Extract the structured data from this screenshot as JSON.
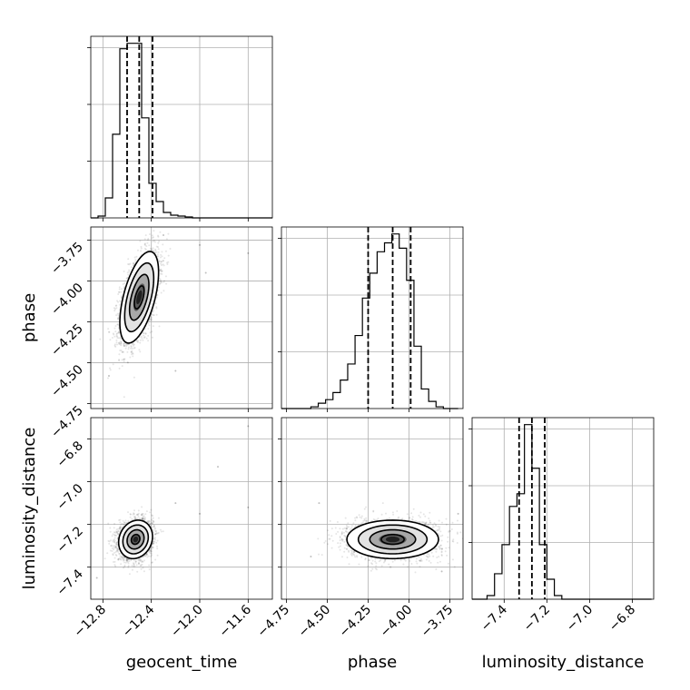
{
  "chart_data": {
    "type": "corner",
    "parameters": [
      "geocent_time",
      "phase",
      "luminosity_distance"
    ],
    "axis_labels": {
      "x": [
        "geocent_time",
        "phase",
        "luminosity_distance"
      ],
      "y": [
        "",
        "phase",
        "luminosity_distance"
      ]
    },
    "ranges": {
      "geocent_time": [
        -12.9,
        -11.4
      ],
      "phase": [
        -4.78,
        -3.67
      ],
      "luminosity_distance": [
        -7.55,
        -6.7
      ]
    },
    "ticks": {
      "geocent_time": [
        -12.8,
        -12.4,
        -12.0,
        -11.6
      ],
      "phase": [
        -4.75,
        -4.5,
        -4.25,
        -4.0,
        -3.75
      ],
      "luminosity_distance": [
        -7.4,
        -7.2,
        -7.0,
        -6.8
      ]
    },
    "tick_labels": {
      "geocent_time": [
        "−12.8",
        "−12.4",
        "−12.0",
        "−11.6"
      ],
      "phase": [
        "−4.75",
        "−4.50",
        "−4.25",
        "−4.00",
        "−3.75"
      ],
      "luminosity_distance": [
        "−7.4",
        "−7.2",
        "−7.0",
        "−6.8"
      ]
    },
    "grid": true,
    "histograms": {
      "geocent_time": {
        "bin_edges": [
          -12.9,
          -12.84,
          -12.78,
          -12.72,
          -12.66,
          -12.6,
          -12.54,
          -12.48,
          -12.42,
          -12.36,
          -12.3,
          -12.24,
          -12.18,
          -12.12,
          -12.06,
          -12.0,
          -11.94,
          -11.88,
          -11.82,
          -11.76,
          -11.7,
          -11.64,
          -11.58,
          -11.52,
          -11.46,
          -11.4
        ],
        "counts": [
          0,
          0.01,
          0.11,
          0.46,
          0.93,
          0.96,
          0.96,
          0.55,
          0.19,
          0.09,
          0.03,
          0.015,
          0.01,
          0.005,
          0,
          0,
          0,
          0,
          0,
          0,
          0,
          0,
          0,
          0,
          0
        ],
        "quantiles": [
          -12.6,
          -12.5,
          -12.39
        ]
      },
      "phase": {
        "bin_edges": [
          -4.78,
          -4.735,
          -4.69,
          -4.645,
          -4.6,
          -4.555,
          -4.51,
          -4.465,
          -4.42,
          -4.375,
          -4.33,
          -4.285,
          -4.24,
          -4.195,
          -4.15,
          -4.105,
          -4.06,
          -4.015,
          -3.97,
          -3.925,
          -3.88,
          -3.835,
          -3.79,
          -3.745,
          -3.7
        ],
        "counts": [
          0,
          0,
          0,
          0,
          0.01,
          0.03,
          0.05,
          0.09,
          0.16,
          0.25,
          0.41,
          0.62,
          0.76,
          0.88,
          0.93,
          0.98,
          0.9,
          0.72,
          0.35,
          0.11,
          0.04,
          0.01,
          0,
          0
        ],
        "quantiles": [
          -4.25,
          -4.1,
          -3.99
        ]
      },
      "luminosity_distance": {
        "bin_edges": [
          -7.55,
          -7.515,
          -7.48,
          -7.445,
          -7.41,
          -7.375,
          -7.34,
          -7.305,
          -7.27,
          -7.235,
          -7.2,
          -7.165,
          -7.13,
          -7.095,
          -7.06,
          -7.025,
          -6.99,
          -6.955,
          -6.92,
          -6.885,
          -6.85,
          -6.815,
          -6.78,
          -6.745,
          -6.71
        ],
        "counts": [
          0,
          0,
          0.02,
          0.14,
          0.3,
          0.51,
          0.58,
          0.96,
          0.72,
          0.3,
          0.11,
          0.02,
          0,
          0,
          0,
          0,
          0,
          0,
          0,
          0,
          0,
          0,
          0,
          0
        ],
        "quantiles": [
          -7.33,
          -7.27,
          -7.21
        ]
      }
    },
    "joint": [
      {
        "x_param": "geocent_time",
        "y_param": "phase",
        "center": [
          -12.5,
          -4.1
        ],
        "sigma": [
          0.08,
          0.14
        ],
        "correlation": 0.55,
        "contour_levels_sigma": [
          0.5,
          1.0,
          1.5,
          2.0
        ],
        "outliers": [
          [
            -11.6,
            -3.83
          ],
          [
            -11.95,
            -3.95
          ],
          [
            -12.0,
            -3.78
          ],
          [
            -12.2,
            -4.55
          ],
          [
            -12.75,
            -4.58
          ],
          [
            -12.3,
            -3.72
          ]
        ]
      },
      {
        "x_param": "geocent_time",
        "y_param": "luminosity_distance",
        "center": [
          -12.53,
          -7.27
        ],
        "sigma": [
          0.07,
          0.045
        ],
        "correlation": 0.15,
        "contour_levels_sigma": [
          0.5,
          1.0,
          1.5,
          2.0
        ],
        "outliers": [
          [
            -11.6,
            -6.74
          ],
          [
            -11.85,
            -6.93
          ],
          [
            -11.6,
            -7.12
          ],
          [
            -12.0,
            -7.15
          ],
          [
            -12.2,
            -7.1
          ],
          [
            -12.85,
            -7.45
          ]
        ]
      },
      {
        "x_param": "phase",
        "y_param": "luminosity_distance",
        "center": [
          -4.1,
          -7.27
        ],
        "sigma": [
          0.14,
          0.045
        ],
        "correlation": 0.0,
        "contour_levels_sigma": [
          0.5,
          1.0,
          1.5,
          2.0
        ],
        "outliers": [
          [
            -3.8,
            -7.42
          ],
          [
            -4.55,
            -7.1
          ],
          [
            -3.7,
            -7.15
          ],
          [
            -4.6,
            -7.35
          ]
        ]
      }
    ]
  }
}
